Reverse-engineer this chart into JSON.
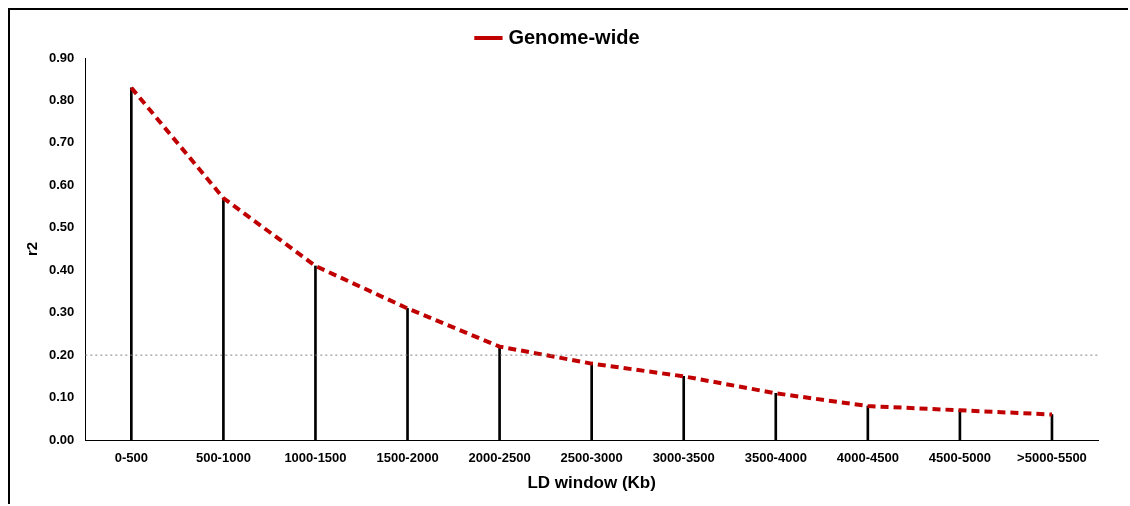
{
  "chart_data": {
    "type": "line",
    "xlabel": "LD window (Kb)",
    "ylabel": "r2",
    "categories": [
      "0-500",
      "500-1000",
      "1000-1500",
      "1500-2000",
      "2000-2500",
      "2500-3000",
      "3000-3500",
      "3500-4000",
      "4000-4500",
      "4500-5000",
      ">5000-5500"
    ],
    "series": [
      {
        "type": "bar",
        "color": "#000000",
        "values": [
          0.83,
          0.57,
          0.41,
          0.31,
          0.22,
          0.18,
          0.15,
          0.11,
          0.08,
          0.07,
          0.06
        ]
      },
      {
        "name": "Genome-wide",
        "color": "#c00000",
        "line_style": "dashed",
        "values": [
          0.83,
          0.57,
          0.41,
          0.31,
          0.22,
          0.18,
          0.15,
          0.11,
          0.08,
          0.07,
          0.06
        ]
      }
    ],
    "ylim": [
      0,
      0.9
    ],
    "yticks": [
      {
        "value": 0,
        "label": "0.00"
      },
      {
        "value": 0.1,
        "label": "0.10"
      },
      {
        "value": 0.2,
        "label": "0.20"
      },
      {
        "value": 0.3,
        "label": "0.30"
      },
      {
        "value": 0.4,
        "label": "0.40"
      },
      {
        "value": 0.5,
        "label": "0.50"
      },
      {
        "value": 0.6,
        "label": "0.60"
      },
      {
        "value": 0.7,
        "label": "0.70"
      },
      {
        "value": 0.8,
        "label": "0.80"
      },
      {
        "value": 0.9,
        "label": "0.90"
      }
    ],
    "ref_lines": [
      {
        "axis": "y",
        "value": 0.2,
        "color": "#808080",
        "line_style": "dotted"
      }
    ],
    "grid": false,
    "marker": "none",
    "legend": "top"
  }
}
